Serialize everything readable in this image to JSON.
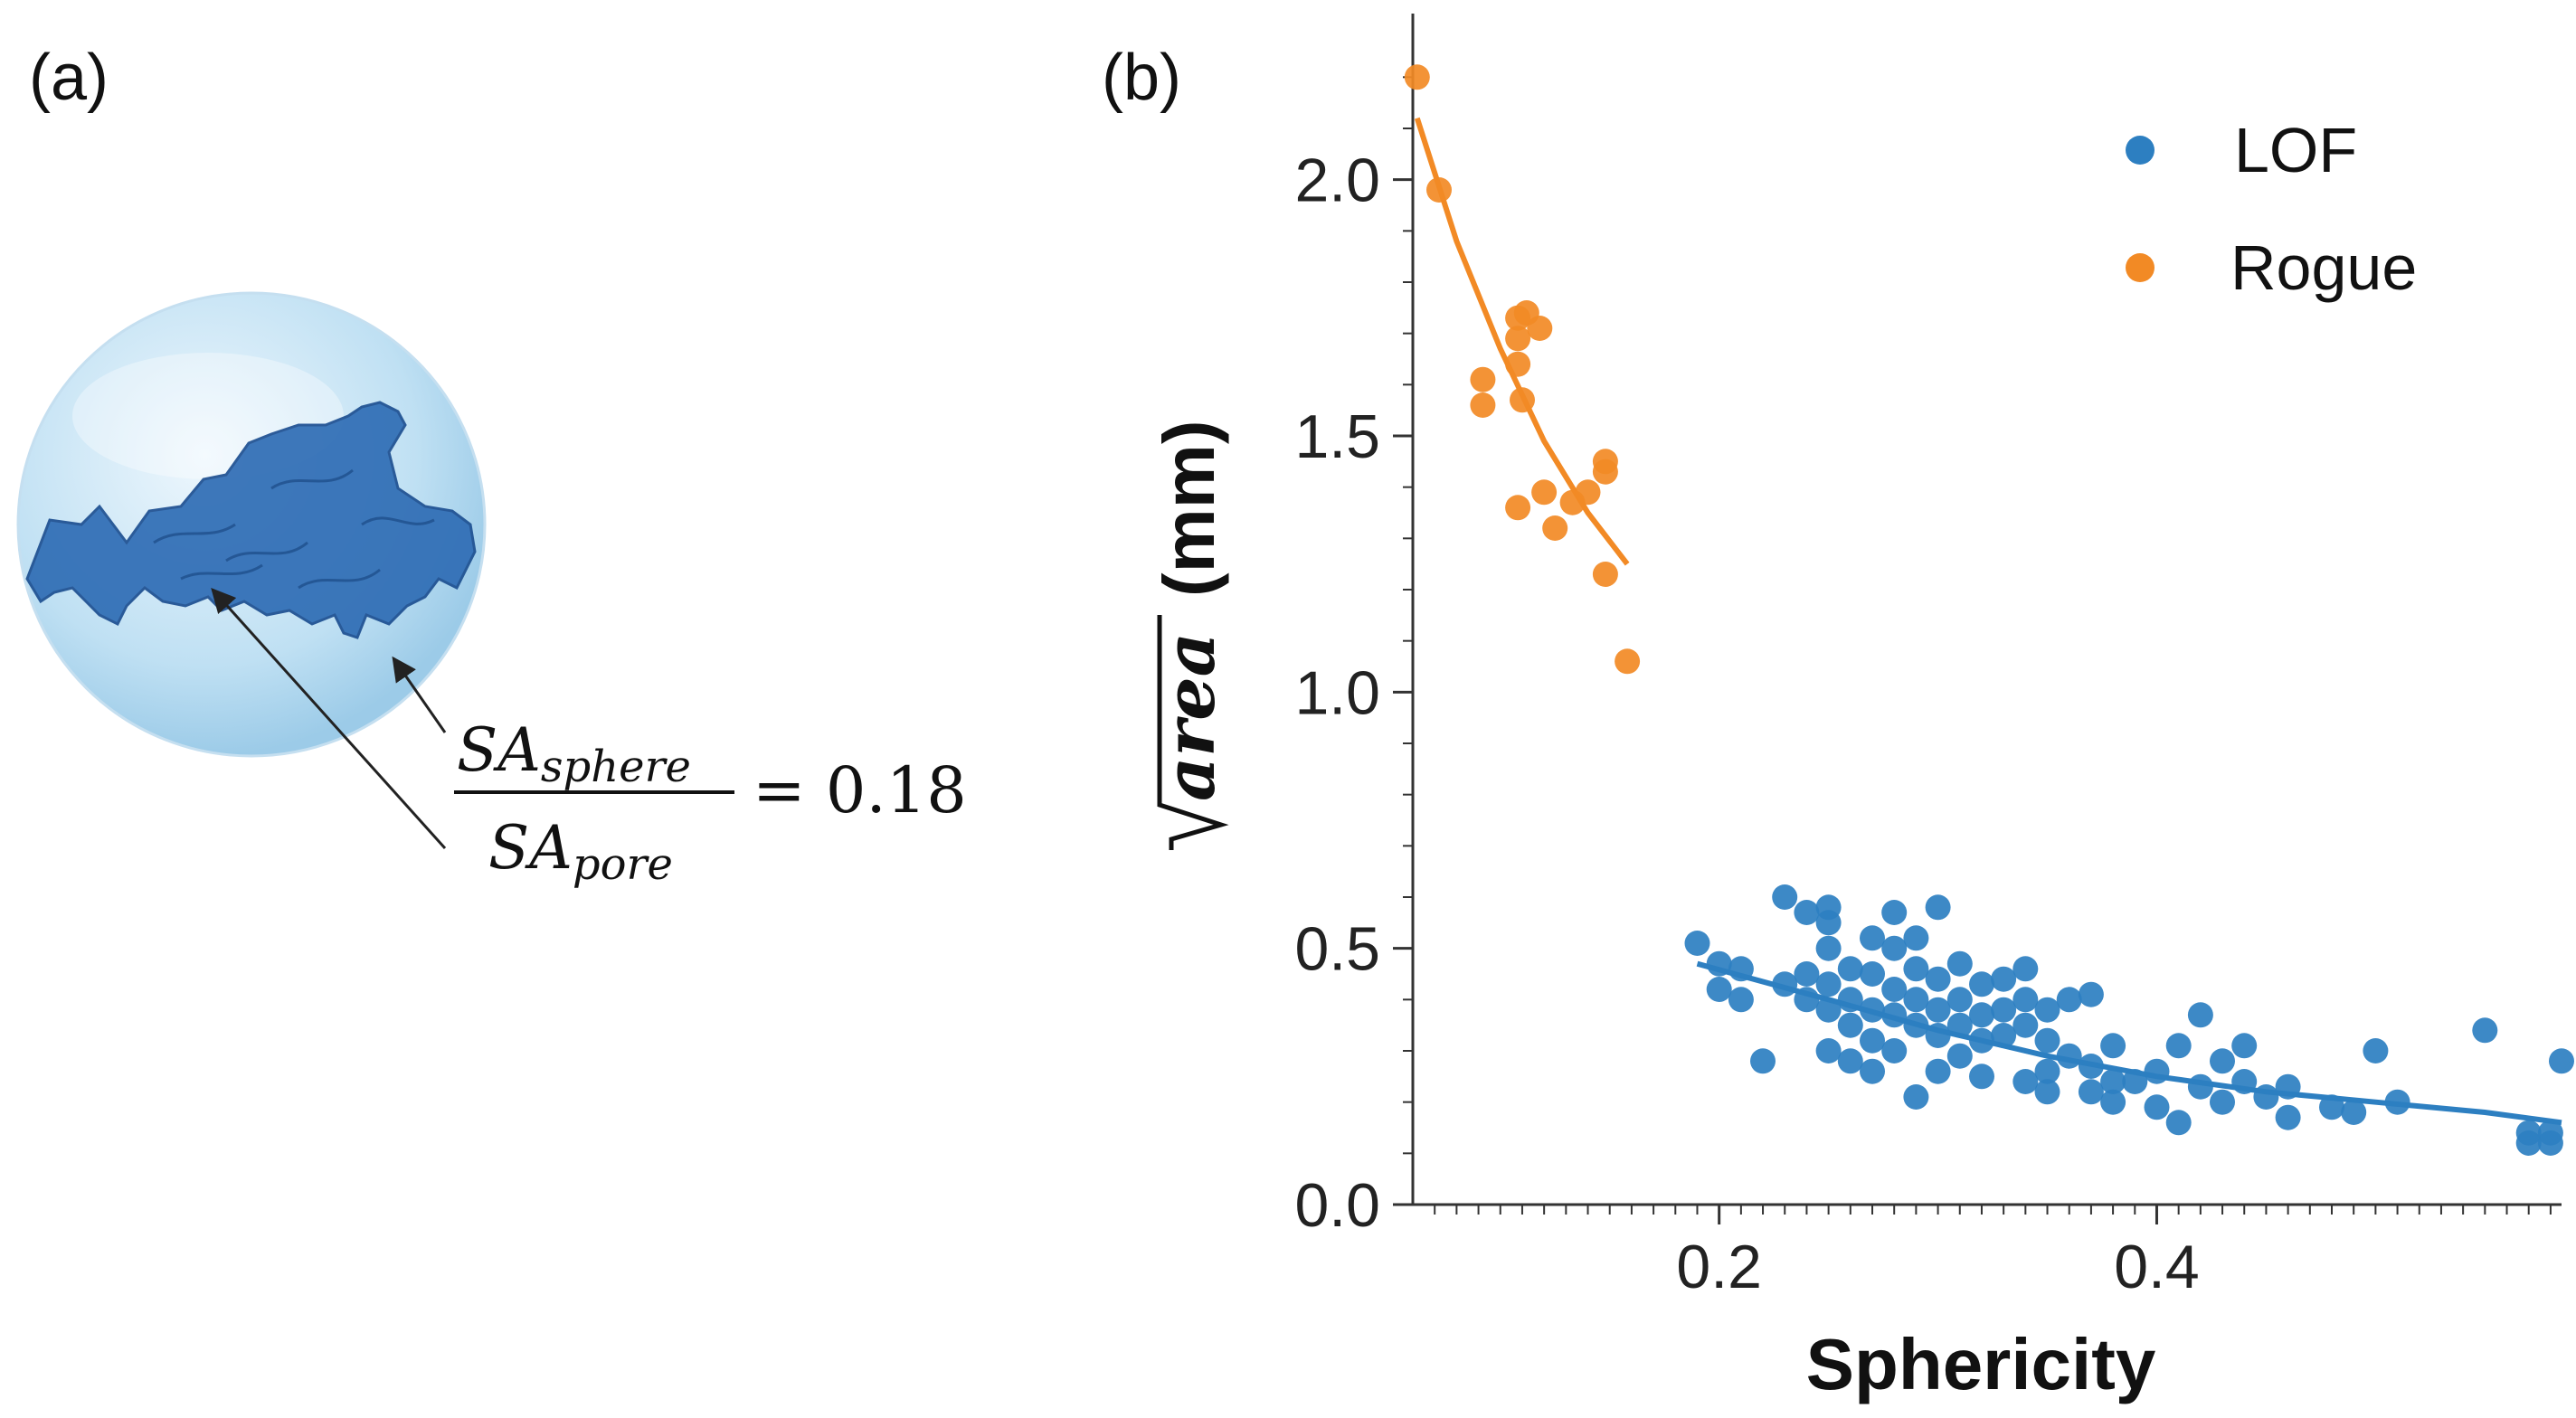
{
  "panel_a": {
    "label": "(a)",
    "formula": {
      "numerator_main": "SA",
      "numerator_sub": "sphere",
      "denominator_main": "SA",
      "denominator_sub": "pore",
      "equals_value": "= 0.18"
    },
    "colors": {
      "pore": "#2f6db5",
      "sphere": "#a9d2ec"
    }
  },
  "panel_b": {
    "label": "(b)",
    "chart_data": {
      "type": "scatter",
      "title": "",
      "xlabel": "Sphericity",
      "ylabel_sqrt_term": "area",
      "ylabel_unit": "(mm)",
      "xlim": [
        0.06,
        0.585
      ],
      "ylim": [
        0.0,
        2.28
      ],
      "xticks": [
        0.2,
        0.4
      ],
      "xtick_labels": [
        "0.2",
        "0.4"
      ],
      "yticks": [
        0.0,
        0.5,
        1.0,
        1.5,
        2.0
      ],
      "ytick_labels": [
        "0.0",
        "0.5",
        "1.0",
        "1.5",
        "2.0"
      ],
      "legend_position": "top-right",
      "series": [
        {
          "name": "LOF",
          "color": "#2d7fc1",
          "points": [
            [
              0.19,
              0.51
            ],
            [
              0.2,
              0.47
            ],
            [
              0.2,
              0.42
            ],
            [
              0.21,
              0.46
            ],
            [
              0.21,
              0.4
            ],
            [
              0.22,
              0.28
            ],
            [
              0.23,
              0.6
            ],
            [
              0.23,
              0.43
            ],
            [
              0.24,
              0.45
            ],
            [
              0.24,
              0.4
            ],
            [
              0.24,
              0.57
            ],
            [
              0.25,
              0.58
            ],
            [
              0.25,
              0.55
            ],
            [
              0.25,
              0.5
            ],
            [
              0.25,
              0.43
            ],
            [
              0.25,
              0.38
            ],
            [
              0.25,
              0.3
            ],
            [
              0.26,
              0.46
            ],
            [
              0.26,
              0.4
            ],
            [
              0.26,
              0.35
            ],
            [
              0.26,
              0.28
            ],
            [
              0.27,
              0.52
            ],
            [
              0.27,
              0.45
            ],
            [
              0.27,
              0.38
            ],
            [
              0.27,
              0.32
            ],
            [
              0.27,
              0.26
            ],
            [
              0.28,
              0.57
            ],
            [
              0.28,
              0.5
            ],
            [
              0.28,
              0.42
            ],
            [
              0.28,
              0.37
            ],
            [
              0.28,
              0.3
            ],
            [
              0.29,
              0.52
            ],
            [
              0.29,
              0.46
            ],
            [
              0.29,
              0.4
            ],
            [
              0.29,
              0.35
            ],
            [
              0.29,
              0.21
            ],
            [
              0.3,
              0.58
            ],
            [
              0.3,
              0.44
            ],
            [
              0.3,
              0.38
            ],
            [
              0.3,
              0.33
            ],
            [
              0.3,
              0.26
            ],
            [
              0.31,
              0.47
            ],
            [
              0.31,
              0.4
            ],
            [
              0.31,
              0.35
            ],
            [
              0.31,
              0.29
            ],
            [
              0.32,
              0.43
            ],
            [
              0.32,
              0.37
            ],
            [
              0.32,
              0.32
            ],
            [
              0.32,
              0.25
            ],
            [
              0.33,
              0.44
            ],
            [
              0.33,
              0.38
            ],
            [
              0.33,
              0.33
            ],
            [
              0.34,
              0.46
            ],
            [
              0.34,
              0.4
            ],
            [
              0.34,
              0.35
            ],
            [
              0.34,
              0.24
            ],
            [
              0.35,
              0.38
            ],
            [
              0.35,
              0.32
            ],
            [
              0.35,
              0.26
            ],
            [
              0.35,
              0.22
            ],
            [
              0.36,
              0.4
            ],
            [
              0.36,
              0.29
            ],
            [
              0.37,
              0.41
            ],
            [
              0.37,
              0.27
            ],
            [
              0.37,
              0.22
            ],
            [
              0.38,
              0.31
            ],
            [
              0.38,
              0.24
            ],
            [
              0.38,
              0.2
            ],
            [
              0.39,
              0.24
            ],
            [
              0.4,
              0.26
            ],
            [
              0.4,
              0.19
            ],
            [
              0.41,
              0.31
            ],
            [
              0.41,
              0.16
            ],
            [
              0.42,
              0.37
            ],
            [
              0.42,
              0.23
            ],
            [
              0.43,
              0.28
            ],
            [
              0.43,
              0.2
            ],
            [
              0.44,
              0.31
            ],
            [
              0.44,
              0.24
            ],
            [
              0.45,
              0.21
            ],
            [
              0.46,
              0.23
            ],
            [
              0.46,
              0.17
            ],
            [
              0.48,
              0.19
            ],
            [
              0.49,
              0.18
            ],
            [
              0.5,
              0.3
            ],
            [
              0.51,
              0.2
            ],
            [
              0.55,
              0.34
            ],
            [
              0.57,
              0.14
            ],
            [
              0.57,
              0.12
            ],
            [
              0.58,
              0.14
            ],
            [
              0.58,
              0.12
            ],
            [
              0.585,
              0.28
            ]
          ],
          "fit": [
            [
              0.19,
              0.47
            ],
            [
              0.25,
              0.4
            ],
            [
              0.3,
              0.34
            ],
            [
              0.35,
              0.29
            ],
            [
              0.4,
              0.25
            ],
            [
              0.45,
              0.22
            ],
            [
              0.5,
              0.2
            ],
            [
              0.55,
              0.18
            ],
            [
              0.585,
              0.16
            ]
          ]
        },
        {
          "name": "Rogue",
          "color": "#f28a25",
          "points": [
            [
              0.062,
              2.2
            ],
            [
              0.072,
              1.98
            ],
            [
              0.092,
              1.61
            ],
            [
              0.092,
              1.56
            ],
            [
              0.108,
              1.73
            ],
            [
              0.108,
              1.69
            ],
            [
              0.108,
              1.64
            ],
            [
              0.11,
              1.57
            ],
            [
              0.108,
              1.36
            ],
            [
              0.112,
              1.74
            ],
            [
              0.118,
              1.71
            ],
            [
              0.12,
              1.39
            ],
            [
              0.125,
              1.32
            ],
            [
              0.133,
              1.37
            ],
            [
              0.14,
              1.39
            ],
            [
              0.148,
              1.45
            ],
            [
              0.148,
              1.43
            ],
            [
              0.148,
              1.23
            ],
            [
              0.158,
              1.06
            ]
          ],
          "fit": [
            [
              0.062,
              2.12
            ],
            [
              0.08,
              1.88
            ],
            [
              0.1,
              1.67
            ],
            [
              0.12,
              1.49
            ],
            [
              0.14,
              1.35
            ],
            [
              0.158,
              1.25
            ]
          ]
        }
      ]
    }
  }
}
